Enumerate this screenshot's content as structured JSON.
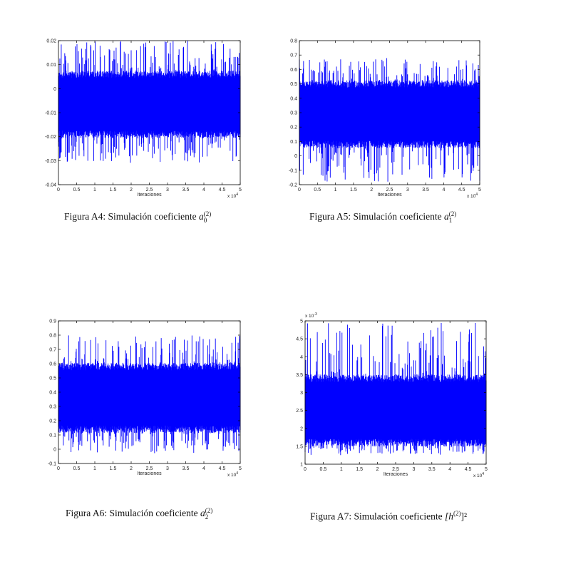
{
  "chart_data": [
    {
      "type": "line",
      "xlabel": "Iteraciones",
      "x_multiplier": "x 10",
      "x_multiplier_exp": "4",
      "y_multiplier": "",
      "y_multiplier_exp": "",
      "xlim": [
        0,
        5
      ],
      "ylim": [
        -0.04,
        0.02
      ],
      "xticks": [
        "0",
        "0.5",
        "1",
        "1.5",
        "2",
        "2.5",
        "3",
        "3.5",
        "4",
        "4.5",
        "5"
      ],
      "yticks": [
        "-0.04",
        "-0.03",
        "-0.02",
        "-0.01",
        "0",
        "0.01",
        "0.02"
      ],
      "series_color": "#0000ff",
      "band": {
        "mean": -0.007,
        "core_low": -0.019,
        "core_high": 0.006,
        "spike_low": -0.031,
        "spike_high": 0.02
      },
      "caption": {
        "prefix": "Figura A4: Simulación coeficiente ",
        "symbol": "a",
        "sub": "0",
        "sup": "(2)",
        "suffix": ""
      }
    },
    {
      "type": "line",
      "xlabel": "Iteraciones",
      "x_multiplier": "x 10",
      "x_multiplier_exp": "4",
      "y_multiplier": "",
      "y_multiplier_exp": "",
      "xlim": [
        0,
        5
      ],
      "ylim": [
        -0.2,
        0.8
      ],
      "xticks": [
        "0",
        "0.5",
        "1",
        "1.5",
        "2",
        "2.5",
        "3",
        "3.5",
        "4",
        "4.5",
        "5"
      ],
      "yticks": [
        "-0.2",
        "-0.1",
        "0",
        "0.1",
        "0.2",
        "0.3",
        "0.4",
        "0.5",
        "0.6",
        "0.7",
        "0.8"
      ],
      "series_color": "#0000ff",
      "band": {
        "mean": 0.28,
        "core_low": 0.08,
        "core_high": 0.5,
        "spike_low": -0.18,
        "spike_high": 0.68
      },
      "caption": {
        "prefix": "Figura A5: Simulación coeficiente ",
        "symbol": "a",
        "sub": "1",
        "sup": "(2)",
        "suffix": ""
      }
    },
    {
      "type": "line",
      "xlabel": "Iteraciones",
      "x_multiplier": "x 10",
      "x_multiplier_exp": "4",
      "y_multiplier": "",
      "y_multiplier_exp": "",
      "xlim": [
        0,
        5
      ],
      "ylim": [
        -0.1,
        0.9
      ],
      "xticks": [
        "0",
        "0.5",
        "1",
        "1.5",
        "2",
        "2.5",
        "3",
        "3.5",
        "4",
        "4.5",
        "5"
      ],
      "yticks": [
        "-0.1",
        "0",
        "0.1",
        "0.2",
        "0.3",
        "0.4",
        "0.5",
        "0.6",
        "0.7",
        "0.8",
        "0.9"
      ],
      "series_color": "#0000ff",
      "band": {
        "mean": 0.36,
        "core_low": 0.14,
        "core_high": 0.58,
        "spike_low": -0.03,
        "spike_high": 0.8
      },
      "caption": {
        "prefix": "Figura A6: Simulación coeficiente ",
        "symbol": "a",
        "sub": "2",
        "sup": "(2)",
        "suffix": ""
      }
    },
    {
      "type": "line",
      "xlabel": "Iteraciones",
      "x_multiplier": "x 10",
      "x_multiplier_exp": "4",
      "y_multiplier": "x 10",
      "y_multiplier_exp": "-3",
      "xlim": [
        0,
        5
      ],
      "ylim": [
        1,
        5
      ],
      "xticks": [
        "0",
        "0.5",
        "1",
        "1.5",
        "2",
        "2.5",
        "3",
        "3.5",
        "4",
        "4.5",
        "5"
      ],
      "yticks": [
        "1",
        "1.5",
        "2",
        "2.5",
        "3",
        "3.5",
        "4",
        "4.5",
        "5"
      ],
      "series_color": "#0000ff",
      "band": {
        "mean": 2.4,
        "core_low": 1.6,
        "core_high": 3.4,
        "spike_low": 1.25,
        "spike_high": 4.95
      },
      "caption": {
        "prefix": "Figura A7: Simulación coeficiente ",
        "symbol": "[h",
        "sub": "",
        "sup": "(2)",
        "suffix": "]²"
      }
    }
  ]
}
